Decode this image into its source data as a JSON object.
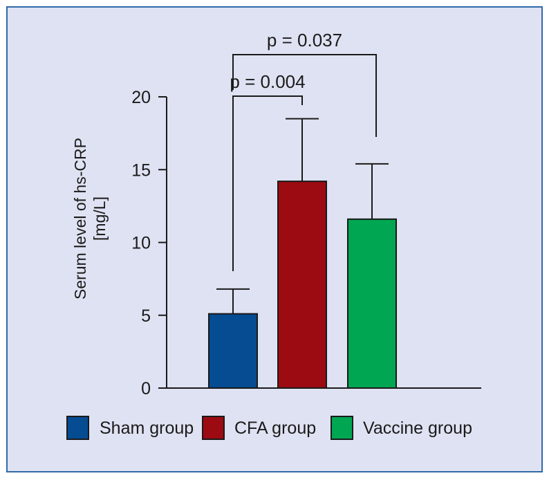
{
  "chart_data": {
    "type": "bar",
    "categories": [
      "Sham group",
      "CFA group",
      "Vaccine group"
    ],
    "values": [
      5.1,
      14.2,
      11.6
    ],
    "errors": [
      1.7,
      4.3,
      3.8
    ],
    "colors": [
      "#054c92",
      "#9b0b11",
      "#00a651"
    ],
    "ylabel_line1": "Serum level of hs-CRP",
    "ylabel_line2": "[mg/L]",
    "ylim": [
      0,
      20
    ],
    "yticks": [
      0,
      5,
      10,
      15,
      20
    ],
    "annotations": [
      {
        "label": "p = 0.004",
        "from": 0,
        "to": 1
      },
      {
        "label": "p = 0.037",
        "from": 0,
        "to": 2
      }
    ],
    "legend": [
      {
        "label": "Sham group",
        "color": "#054c92"
      },
      {
        "label": "CFA group",
        "color": "#9b0b11"
      },
      {
        "label": "Vaccine group",
        "color": "#00a651"
      }
    ]
  }
}
